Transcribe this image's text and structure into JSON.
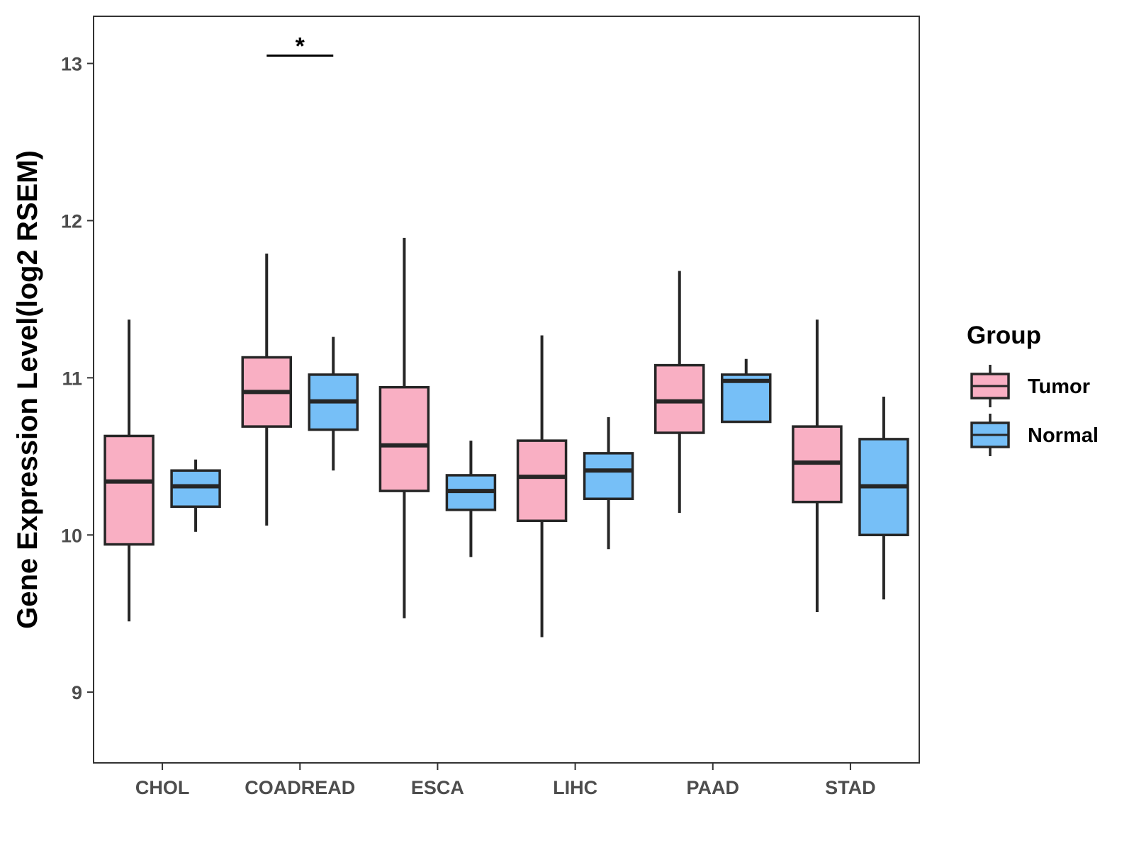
{
  "chart_data": {
    "type": "boxplot",
    "title": "",
    "xlabel": "",
    "ylabel": "Gene Expression Level(log2 RSEM)",
    "ylim": [
      8.55,
      13.3
    ],
    "yticks": [
      9,
      10,
      11,
      12,
      13
    ],
    "grid": false,
    "categories": [
      "CHOL",
      "COADREAD",
      "ESCA",
      "LIHC",
      "PAAD",
      "STAD"
    ],
    "legend": {
      "title": "Group",
      "position": "right"
    },
    "series": [
      {
        "name": "Tumor",
        "color": "#F9AFC3",
        "boxes": [
          {
            "min": 9.45,
            "q1": 9.94,
            "median": 10.34,
            "q3": 10.63,
            "max": 11.37
          },
          {
            "min": 10.06,
            "q1": 10.69,
            "median": 10.91,
            "q3": 11.13,
            "max": 11.79
          },
          {
            "min": 9.47,
            "q1": 10.28,
            "median": 10.57,
            "q3": 10.94,
            "max": 11.89
          },
          {
            "min": 9.35,
            "q1": 10.09,
            "median": 10.37,
            "q3": 10.6,
            "max": 11.27
          },
          {
            "min": 10.14,
            "q1": 10.65,
            "median": 10.85,
            "q3": 11.08,
            "max": 11.68
          },
          {
            "min": 9.51,
            "q1": 10.21,
            "median": 10.46,
            "q3": 10.69,
            "max": 11.37
          }
        ]
      },
      {
        "name": "Normal",
        "color": "#76BFF7",
        "boxes": [
          {
            "min": 10.02,
            "q1": 10.18,
            "median": 10.31,
            "q3": 10.41,
            "max": 10.48
          },
          {
            "min": 10.41,
            "q1": 10.67,
            "median": 10.85,
            "q3": 11.02,
            "max": 11.26
          },
          {
            "min": 9.86,
            "q1": 10.16,
            "median": 10.28,
            "q3": 10.38,
            "max": 10.6
          },
          {
            "min": 9.91,
            "q1": 10.23,
            "median": 10.41,
            "q3": 10.52,
            "max": 10.75
          },
          {
            "min": 10.72,
            "q1": 10.72,
            "median": 10.98,
            "q3": 11.02,
            "max": 11.12
          },
          {
            "min": 9.59,
            "q1": 10.0,
            "median": 10.31,
            "q3": 10.61,
            "max": 10.88
          }
        ]
      }
    ],
    "annotations": [
      {
        "category": "COADREAD",
        "label": "*",
        "y": 13.05
      }
    ]
  }
}
